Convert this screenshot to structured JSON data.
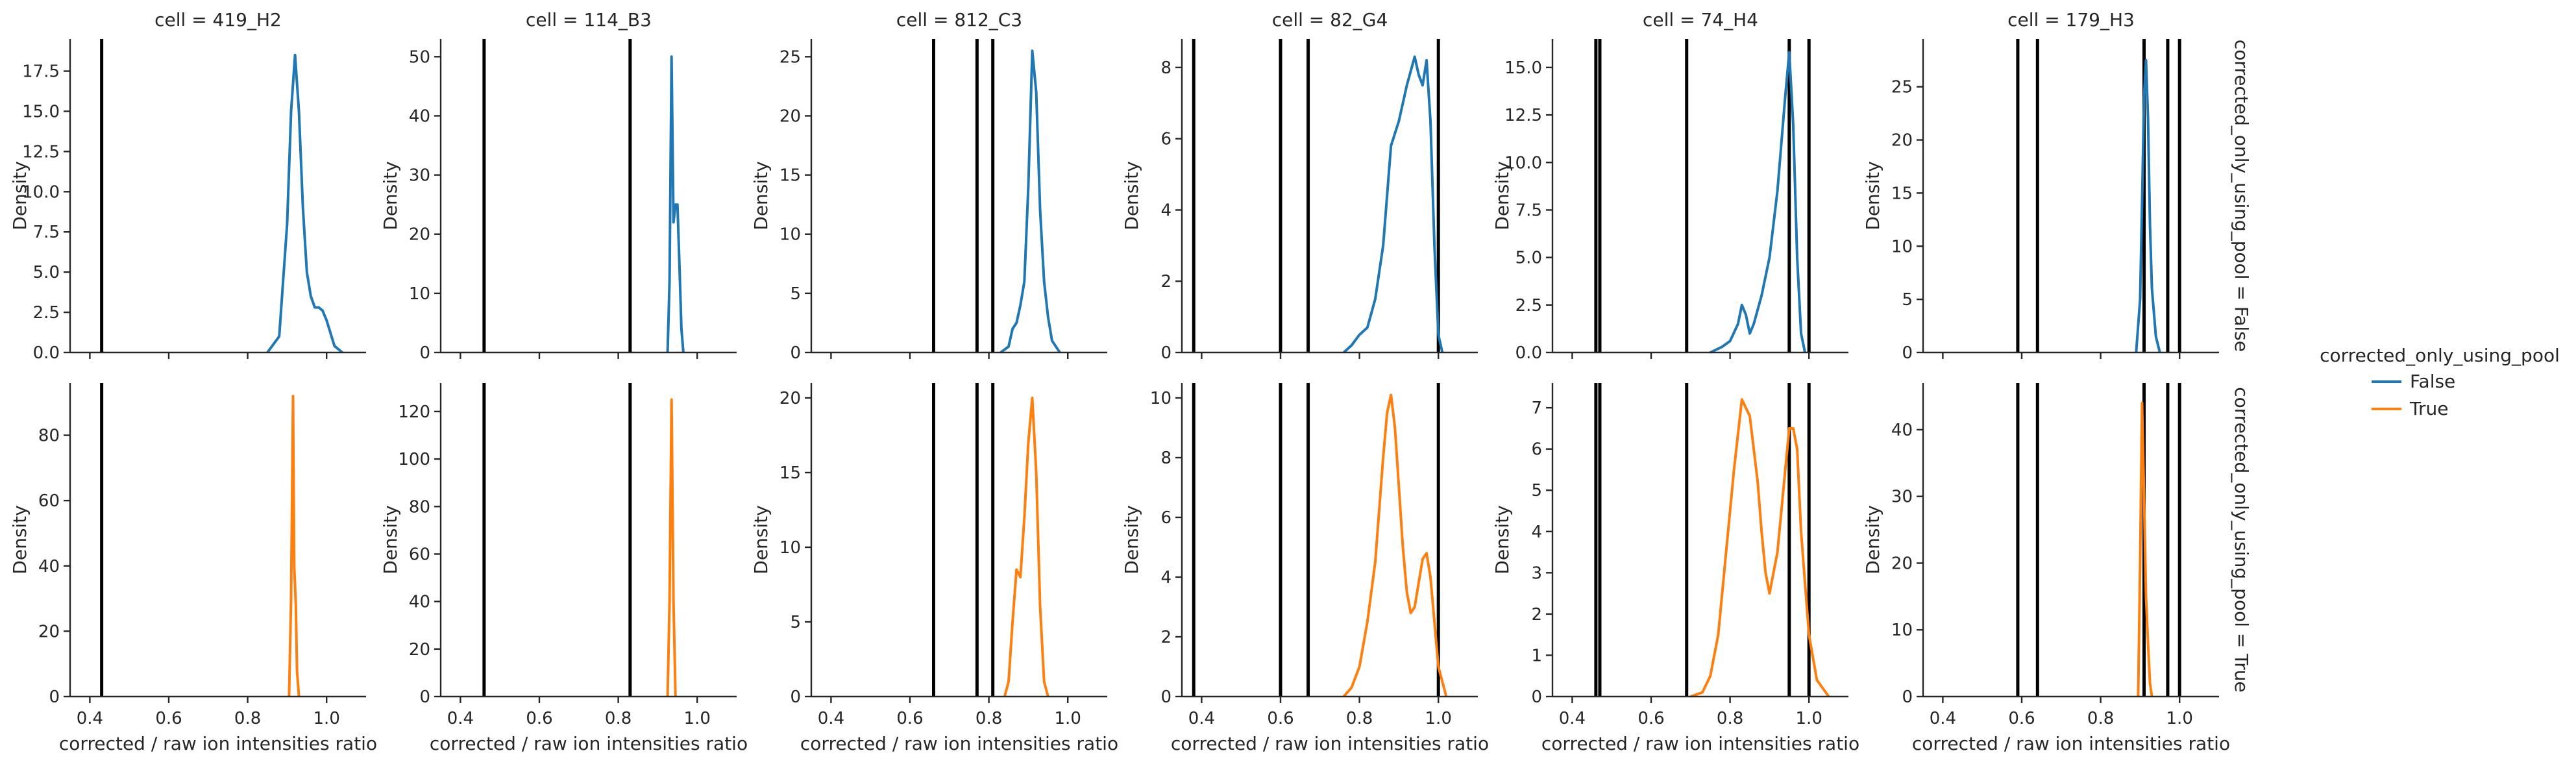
{
  "chart_data": {
    "type": "line",
    "kind": "kde facet grid",
    "x_label": "corrected / raw ion intensities ratio",
    "y_label": "Density",
    "xlim": [
      0.35,
      1.1
    ],
    "x_ticks": [
      0.4,
      0.6,
      0.8,
      1.0
    ],
    "x_tick_labels": [
      "0.4",
      "0.6",
      "0.8",
      "1.0"
    ],
    "grid": false,
    "legend": {
      "title": "corrected_only_using_pool",
      "placement": "right",
      "entries": [
        {
          "label": "False",
          "color": "#1f77b4"
        },
        {
          "label": "True",
          "color": "#ff7f0e"
        }
      ]
    },
    "columns": [
      {
        "title": "cell = 419_H2",
        "vlines": [
          0.43
        ]
      },
      {
        "title": "cell = 114_B3",
        "vlines": [
          0.46,
          0.83
        ]
      },
      {
        "title": "cell = 812_C3",
        "vlines": [
          0.66,
          0.77,
          0.81
        ]
      },
      {
        "title": "cell = 82_G4",
        "vlines": [
          0.38,
          0.6,
          0.67,
          1.0
        ]
      },
      {
        "title": "cell = 74_H4",
        "vlines": [
          0.46,
          0.47,
          0.69,
          0.95,
          1.0
        ]
      },
      {
        "title": "cell = 179_H3",
        "vlines": [
          0.59,
          0.64,
          0.91,
          0.97,
          1.0
        ]
      }
    ],
    "rows": [
      {
        "title": "corrected_only_using_pool = False",
        "color": "#1f77b4",
        "panels": [
          {
            "ylim": [
              0,
              19.5
            ],
            "yticks": [
              0,
              2.5,
              5,
              7.5,
              10,
              12.5,
              15,
              17.5
            ],
            "ytick_labels": [
              "0.0",
              "2.5",
              "5.0",
              "7.5",
              "10.0",
              "12.5",
              "15.0",
              "17.5"
            ],
            "x": [
              0.85,
              0.88,
              0.9,
              0.91,
              0.92,
              0.93,
              0.94,
              0.95,
              0.96,
              0.97,
              0.98,
              0.99,
              1.0,
              1.01,
              1.02,
              1.04
            ],
            "y": [
              0,
              1,
              8,
              15,
              18.5,
              15,
              9,
              5,
              3.5,
              2.8,
              2.8,
              2.6,
              2.0,
              1.2,
              0.4,
              0
            ]
          },
          {
            "ylim": [
              0,
              53
            ],
            "yticks": [
              0,
              10,
              20,
              30,
              40,
              50
            ],
            "ytick_labels": [
              "0",
              "10",
              "20",
              "30",
              "40",
              "50"
            ],
            "x": [
              0.925,
              0.93,
              0.935,
              0.94,
              0.945,
              0.95,
              0.955,
              0.96,
              0.965
            ],
            "y": [
              0,
              12,
              50,
              22,
              25,
              25,
              15,
              4,
              0
            ]
          },
          {
            "ylim": [
              0,
              26.5
            ],
            "yticks": [
              0,
              5,
              10,
              15,
              20,
              25
            ],
            "ytick_labels": [
              "0",
              "5",
              "10",
              "15",
              "20",
              "25"
            ],
            "x": [
              0.83,
              0.85,
              0.86,
              0.87,
              0.88,
              0.89,
              0.9,
              0.91,
              0.92,
              0.93,
              0.94,
              0.95,
              0.96,
              0.98
            ],
            "y": [
              0,
              0.5,
              2,
              2.5,
              4,
              6,
              14,
              25.5,
              22,
              12,
              6,
              3,
              1,
              0
            ]
          },
          {
            "ylim": [
              0,
              8.8
            ],
            "yticks": [
              0,
              2,
              4,
              6,
              8
            ],
            "ytick_labels": [
              "0",
              "2",
              "4",
              "6",
              "8"
            ],
            "x": [
              0.76,
              0.78,
              0.8,
              0.82,
              0.84,
              0.86,
              0.88,
              0.9,
              0.92,
              0.94,
              0.95,
              0.96,
              0.97,
              0.98,
              0.99,
              1.0,
              1.01
            ],
            "y": [
              0,
              0.2,
              0.5,
              0.7,
              1.5,
              3.0,
              5.8,
              6.5,
              7.5,
              8.3,
              7.8,
              7.5,
              8.2,
              6.5,
              3.0,
              0.5,
              0
            ]
          },
          {
            "ylim": [
              0,
              16.5
            ],
            "yticks": [
              0,
              2.5,
              5,
              7.5,
              10,
              12.5,
              15
            ],
            "ytick_labels": [
              "0.0",
              "2.5",
              "5.0",
              "7.5",
              "10.0",
              "12.5",
              "15.0"
            ],
            "x": [
              0.75,
              0.78,
              0.8,
              0.82,
              0.83,
              0.84,
              0.85,
              0.86,
              0.88,
              0.9,
              0.92,
              0.94,
              0.95,
              0.96,
              0.97,
              0.98,
              0.99
            ],
            "y": [
              0,
              0.3,
              0.6,
              1.5,
              2.5,
              2.0,
              1.0,
              1.5,
              3.0,
              5.0,
              8.5,
              13.5,
              15.8,
              12.0,
              5.0,
              1.0,
              0
            ]
          },
          {
            "ylim": [
              0,
              29.5
            ],
            "yticks": [
              0,
              5,
              10,
              15,
              20,
              25
            ],
            "ytick_labels": [
              "0",
              "5",
              "10",
              "15",
              "20",
              "25"
            ],
            "x": [
              0.89,
              0.9,
              0.905,
              0.91,
              0.915,
              0.92,
              0.925,
              0.93,
              0.94,
              0.95
            ],
            "y": [
              0,
              5,
              14,
              24,
              27.5,
              22,
              12,
              6,
              1.5,
              0
            ]
          }
        ]
      },
      {
        "title": "corrected_only_using_pool = True",
        "color": "#ff7f0e",
        "panels": [
          {
            "ylim": [
              0,
              96
            ],
            "yticks": [
              0,
              20,
              40,
              60,
              80
            ],
            "ytick_labels": [
              "0",
              "20",
              "40",
              "60",
              "80"
            ],
            "x": [
              0.905,
              0.91,
              0.915,
              0.918,
              0.922,
              0.925,
              0.93
            ],
            "y": [
              0,
              30,
              92,
              40,
              28,
              8,
              0
            ]
          },
          {
            "ylim": [
              0,
              132
            ],
            "yticks": [
              0,
              20,
              40,
              60,
              80,
              100,
              120
            ],
            "ytick_labels": [
              "0",
              "20",
              "40",
              "60",
              "80",
              "100",
              "120"
            ],
            "x": [
              0.925,
              0.93,
              0.935,
              0.94,
              0.945
            ],
            "y": [
              0,
              40,
              125,
              40,
              0
            ]
          },
          {
            "ylim": [
              0,
              21
            ],
            "yticks": [
              0,
              5,
              10,
              15,
              20
            ],
            "ytick_labels": [
              "0",
              "5",
              "10",
              "15",
              "20"
            ],
            "x": [
              0.84,
              0.85,
              0.86,
              0.87,
              0.88,
              0.89,
              0.9,
              0.91,
              0.92,
              0.93,
              0.94,
              0.95
            ],
            "y": [
              0,
              1,
              5,
              8.5,
              8,
              12,
              17,
              20,
              15,
              6,
              1,
              0
            ]
          },
          {
            "ylim": [
              0,
              10.5
            ],
            "yticks": [
              0,
              2,
              4,
              6,
              8,
              10
            ],
            "ytick_labels": [
              "0",
              "2",
              "4",
              "6",
              "8",
              "10"
            ],
            "x": [
              0.76,
              0.78,
              0.8,
              0.82,
              0.84,
              0.86,
              0.87,
              0.88,
              0.89,
              0.9,
              0.91,
              0.92,
              0.93,
              0.94,
              0.95,
              0.96,
              0.97,
              0.98,
              0.99,
              1.0,
              1.02
            ],
            "y": [
              0,
              0.3,
              1.0,
              2.5,
              4.5,
              8.0,
              9.5,
              10.1,
              9.0,
              7.0,
              5.0,
              3.5,
              2.8,
              3.0,
              3.8,
              4.6,
              4.8,
              4.0,
              2.5,
              1.0,
              0
            ]
          },
          {
            "ylim": [
              0,
              7.6
            ],
            "yticks": [
              0,
              1,
              2,
              3,
              4,
              5,
              6,
              7
            ],
            "ytick_labels": [
              "0",
              "1",
              "2",
              "3",
              "4",
              "5",
              "6",
              "7"
            ],
            "x": [
              0.7,
              0.73,
              0.75,
              0.77,
              0.79,
              0.81,
              0.83,
              0.85,
              0.87,
              0.88,
              0.89,
              0.9,
              0.92,
              0.94,
              0.95,
              0.96,
              0.97,
              0.98,
              1.0,
              1.02,
              1.05
            ],
            "y": [
              0,
              0.1,
              0.5,
              1.5,
              3.5,
              5.5,
              7.2,
              6.8,
              5.2,
              4.0,
              3.0,
              2.5,
              3.5,
              5.5,
              6.5,
              6.5,
              6.0,
              4.0,
              1.5,
              0.4,
              0
            ]
          },
          {
            "ylim": [
              0,
              47
            ],
            "yticks": [
              0,
              10,
              20,
              30,
              40
            ],
            "ytick_labels": [
              "0",
              "10",
              "20",
              "30",
              "40"
            ],
            "x": [
              0.895,
              0.9,
              0.905,
              0.91,
              0.915,
              0.92,
              0.925,
              0.93
            ],
            "y": [
              0,
              20,
              44,
              30,
              15,
              8,
              2,
              0
            ]
          }
        ]
      }
    ]
  }
}
